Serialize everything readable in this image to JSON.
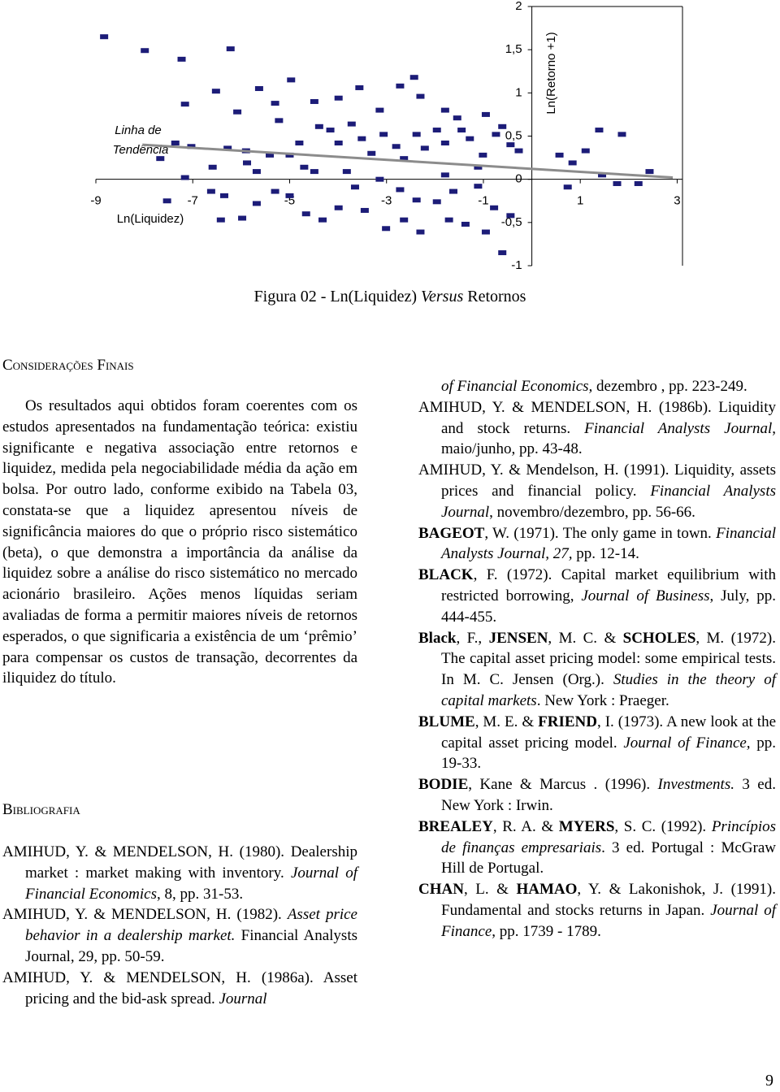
{
  "chart_data": {
    "type": "scatter",
    "x_label": "Ln(Liquidez)",
    "y_label": "Ln(Retorno +1)",
    "color": "#1c1c78",
    "x": [
      -8.83,
      -7.99,
      -7.23,
      -6.22,
      -6.52,
      -7.16,
      -6.08,
      -5.63,
      -4.97,
      -5.3,
      -5.22,
      -7.67,
      -7.36,
      -7.03,
      -6.59,
      -6.28,
      -5.9,
      -5.88,
      -5.68,
      -5.41,
      -5.0,
      -4.8,
      -4.7,
      -4.49,
      -4.39,
      -4.16,
      -3.99,
      -3.72,
      -3.51,
      -3.31,
      -3.06,
      -2.8,
      -2.64,
      -2.38,
      -2.21,
      -1.96,
      -1.79,
      -1.45,
      -1.28,
      -1.01,
      -0.74,
      -0.44,
      -0.27,
      -4.49,
      -3.99,
      -3.56,
      -3.14,
      -2.3,
      -2.43,
      -1.79,
      -1.54,
      -0.95,
      -0.61,
      -2.72,
      -3.65,
      -3.14,
      -2.72,
      -2.38,
      -1.96,
      -1.62,
      -1.11,
      -0.78,
      -0.44,
      -6.35,
      -5.98,
      -5.68,
      -5.0,
      -4.66,
      -4.32,
      -3.99,
      -3.45,
      -3.01,
      -2.64,
      -2.3,
      -1.71,
      -1.37,
      -0.95,
      -0.61,
      -6.42,
      -7.53,
      0.57,
      0.84,
      1.11,
      1.39,
      1.86,
      2.2,
      2.43,
      1.45,
      0.74,
      1.76,
      -7.16,
      -6.62,
      -5.3,
      -3.82,
      -1.11,
      -1.79
    ],
    "y": [
      1.65,
      1.49,
      1.39,
      1.51,
      1.02,
      0.87,
      0.78,
      1.05,
      1.15,
      0.88,
      0.68,
      0.24,
      0.42,
      0.38,
      0.14,
      0.36,
      0.33,
      0.19,
      0.09,
      0.28,
      0.28,
      0.42,
      0.14,
      0.09,
      0.61,
      0.57,
      0.42,
      0.64,
      0.47,
      0.3,
      0.52,
      0.38,
      0.24,
      0.52,
      0.36,
      0.57,
      0.42,
      0.57,
      0.47,
      0.28,
      0.52,
      0.4,
      0.33,
      0.9,
      0.94,
      1.06,
      0.8,
      0.96,
      1.18,
      0.8,
      0.71,
      0.75,
      0.61,
      1.08,
      -0.09,
      0,
      -0.12,
      -0.24,
      -0.26,
      -0.14,
      -0.08,
      -0.33,
      -0.42,
      -0.19,
      -0.45,
      -0.28,
      -0.19,
      -0.4,
      -0.47,
      -0.33,
      -0.36,
      -0.57,
      -0.47,
      -0.61,
      -0.47,
      -0.52,
      -0.61,
      -0.85,
      -0.47,
      -0.25,
      0.28,
      0.19,
      0.33,
      0.57,
      0.52,
      -0.05,
      0.09,
      0.05,
      -0.09,
      -0.05,
      0.02,
      -0.14,
      -0.14,
      0.09,
      0.14,
      0.05
    ],
    "trendline": {
      "label": [
        "Linha de",
        "Tendência"
      ],
      "color": "#8c8c8c",
      "x": [
        -8.04,
        2.91
      ],
      "y": [
        0.4,
        0.02
      ]
    },
    "xlim": [
      -9,
      3.11
    ],
    "ylim": [
      -1,
      2
    ],
    "xticks": [
      -9,
      -7,
      -5,
      -3,
      -1,
      1,
      3
    ],
    "yticks": [
      -1,
      {
        "value": -0.5,
        "label": "-0,5"
      },
      0,
      {
        "value": 0.5,
        "label": "0,5"
      },
      1,
      {
        "value": 1.5,
        "label": "1,5"
      },
      2
    ]
  },
  "caption": [
    "Figura 02 - Ln(Liquidez) ",
    "Versus",
    " Retornos"
  ],
  "conclusion": {
    "heading": "Considerações Finais",
    "text": "Os resultados aqui obtidos foram coerentes com os estudos apresentados na fundamentação teórica: existiu significante e negativa associação entre retornos e liquidez, medida pela negociabilidade média da ação em bolsa. Por outro lado, conforme exibido na Tabela 03, constata-se que a liquidez apresentou níveis de significância maiores do que o próprio risco sistemático (beta), o que demonstra a importância da análise da liquidez sobre a análise do risco sistemático no mercado acionário brasileiro. Ações menos líquidas seriam avaliadas de forma a permitir maiores níveis de retornos esperados, o que significaria a existência de um ‘prêmio’ para compensar os custos de transação, decorrentes da iliquidez do título."
  },
  "bibliography": {
    "heading": "Bibliografia",
    "left": [
      [
        "AMIHUD, Y. & MENDELSON, H. (1980). Dealership market : market making with inventory. ",
        "Journal of Financial Economics",
        ", 8, pp. 31-53."
      ],
      [
        "AMIHUD, Y. & MENDELSON, H. (1982). ",
        "Asset price behavior in a dealership market.",
        " Financial Analysts Journal, 29, pp. 50-59."
      ],
      [
        "AMIHUD, Y. & MENDELSON, H. (1986a). Asset pricing and the bid-ask spread. ",
        "Journal"
      ]
    ],
    "continuation": [
      "of Financial Economics,",
      " dezembro , pp. 223-249."
    ],
    "right": [
      [
        "AMIHUD, Y. & MENDELSON, H. (1986b). Liquidity and stock returns. ",
        "Financial Analysts Journal",
        ", maio/junho, pp. 43-48."
      ],
      [
        "AMIHUD, Y. & Mendelson, H. (1991). Liquidity, assets prices and financial policy. ",
        "Financial Analysts Journal",
        ", novembro/dezembro, pp. 56-66."
      ],
      [
        "BAGEOT",
        ", W. (1971). The only game in town. ",
        "Financial Analysts Journal, 27,",
        " pp. 12-14."
      ],
      [
        "BLACK",
        ", F. (1972). Capital market equilibrium with restricted borrowing, ",
        "Journal of Business",
        ", July, pp. 444-455."
      ],
      [
        "Black",
        ", F., ",
        "JENSEN",
        ", M. C. & ",
        "SCHOLES",
        ", M. (1972). The capital asset pricing model: some empirical tests. In M. C. Jensen (Org.). ",
        "Studies in the theory of capital markets",
        ". New York : Praeger."
      ],
      [
        "BLUME",
        ", M. E. & ",
        "FRIEND",
        ", I. (1973). A new look at the capital asset pricing model. ",
        "Journal of Finance,",
        " pp. 19-33."
      ],
      [
        "BODIE",
        ", Kane & Marcus . (1996). ",
        "Investments.",
        " 3 ed. New York : Irwin."
      ],
      [
        "BREALEY",
        ", R. A. & ",
        "MYERS",
        ", S. C. (1992). ",
        "Princípios de finanças empresariais",
        ". 3 ed. Portugal : McGraw Hill de Portugal."
      ],
      [
        "CHAN",
        ", L. & ",
        "HAMAO",
        ", Y. & Lakonishok, J. (1991). Fundamental and stocks returns in Japan. ",
        "Journal of Finance",
        ", pp. 1739 - 1789."
      ]
    ]
  },
  "page_number": "9"
}
